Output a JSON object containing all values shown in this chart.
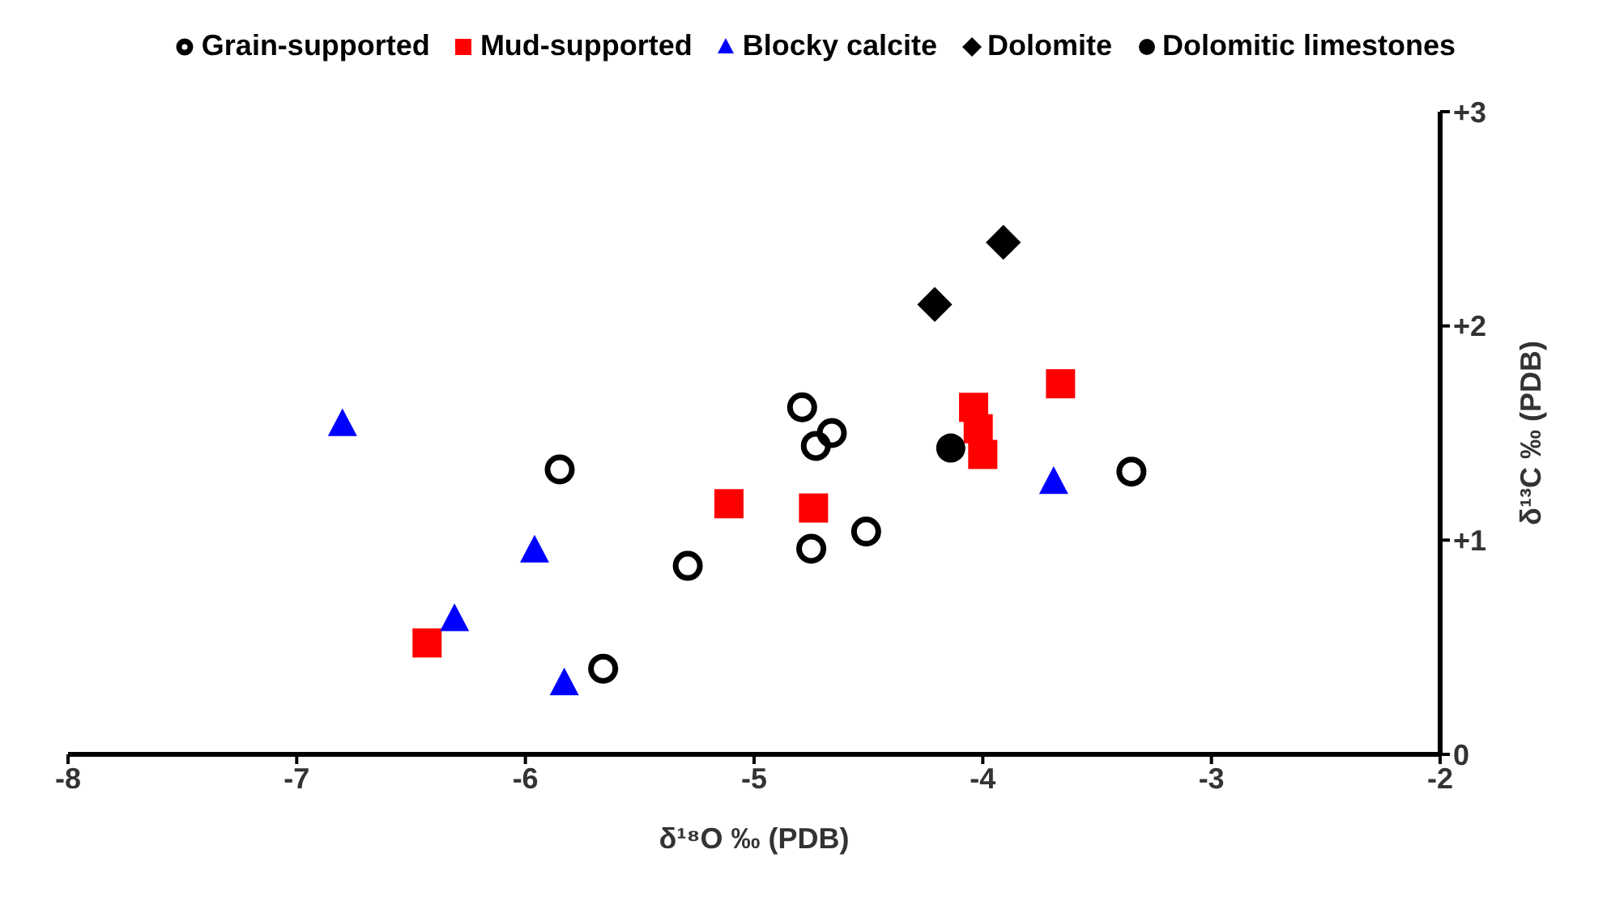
{
  "chart_data": {
    "type": "scatter",
    "xlabel": "δ¹⁸O ‰ (PDB)",
    "ylabel": "δ¹³C ‰ (PDB)",
    "xlim": [
      -8,
      -2
    ],
    "xticks": [
      -8,
      -7,
      -6,
      -5,
      -4,
      -3,
      -2
    ],
    "ylim": [
      0,
      3
    ],
    "yticks": [
      {
        "value": 0,
        "label": "0"
      },
      {
        "value": 1,
        "label": "+1"
      },
      {
        "value": 2,
        "label": "+2"
      },
      {
        "value": 3,
        "label": "+3"
      }
    ],
    "grid": false,
    "legend": "top",
    "series": [
      {
        "name": "Grain-supported",
        "color": "#000000",
        "marker": "circle-open",
        "x": [
          -5.85,
          -5.66,
          -5.29,
          -4.79,
          -4.73,
          -4.66,
          -4.75,
          -4.51,
          -3.35
        ],
        "values": [
          1.33,
          0.4,
          0.88,
          1.62,
          1.44,
          1.5,
          0.96,
          1.04,
          1.32
        ]
      },
      {
        "name": "Mud-supported",
        "color": "#ff0000",
        "marker": "square",
        "x": [
          -6.43,
          -5.11,
          -4.74,
          -4.04,
          -4.02,
          -4.0,
          -3.66
        ],
        "values": [
          0.52,
          1.17,
          1.15,
          1.62,
          1.52,
          1.4,
          1.73
        ]
      },
      {
        "name": "Blocky calcite",
        "color": "#0000ff",
        "marker": "triangle",
        "x": [
          -6.8,
          -5.96,
          -6.31,
          -5.83,
          -3.69
        ],
        "values": [
          1.54,
          0.95,
          0.63,
          0.33,
          1.27
        ]
      },
      {
        "name": "Dolomite",
        "color": "#000000",
        "marker": "diamond",
        "x": [
          -4.21,
          -3.91
        ],
        "values": [
          2.1,
          2.39
        ]
      },
      {
        "name": "Dolomitic limestones",
        "color": "#000000",
        "marker": "circle",
        "x": [
          -4.14
        ],
        "values": [
          1.43
        ]
      }
    ]
  }
}
